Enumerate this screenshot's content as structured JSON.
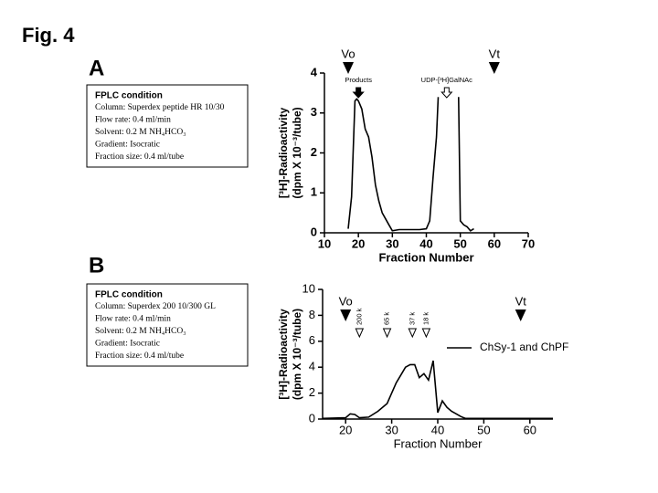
{
  "figure_label": "Fig. 4",
  "chart_data": [
    {
      "type": "line",
      "panel": "A",
      "condition": {
        "title": "FPLC condition",
        "lines": [
          "Column: Superdex peptide HR 10/30",
          "Flow rate: 0.4 ml/min",
          "Solvent: 0.2 M NH₄HCO₃",
          "Gradient:  Isocratic",
          "Fraction size: 0.4 ml/tube"
        ]
      },
      "ylabel": [
        "[³H]-Radioactivity",
        "(dpm X 10⁻³/tube)"
      ],
      "xlabel": "Fraction Number",
      "xlim": [
        10,
        70
      ],
      "xticks": [
        10,
        20,
        30,
        40,
        50,
        60,
        70
      ],
      "ylim": [
        0,
        4
      ],
      "yticks": [
        0,
        1,
        2,
        3,
        4
      ],
      "color": "#000000",
      "x": [
        17,
        18,
        19,
        19.5,
        20,
        21,
        22,
        23,
        24,
        25,
        26,
        27,
        28,
        29,
        30,
        32,
        35,
        38,
        40,
        41,
        42,
        43,
        43.5,
        44,
        49.5,
        50,
        51,
        52,
        53,
        54
      ],
      "values": [
        0.1,
        0.9,
        3.3,
        3.35,
        3.3,
        3.1,
        2.6,
        2.4,
        1.9,
        1.2,
        0.8,
        0.5,
        0.35,
        0.2,
        0.05,
        0.08,
        0.08,
        0.08,
        0.1,
        0.3,
        1.4,
        2.4,
        3.4,
        null,
        3.4,
        0.3,
        0.2,
        0.15,
        0.05,
        0.1
      ],
      "annotations": [
        {
          "text": "Vo",
          "x": 17,
          "marker": "triangle"
        },
        {
          "text": "Vt",
          "x": 60,
          "marker": "triangle"
        },
        {
          "text": "Products",
          "x": 20,
          "marker": "arrow"
        },
        {
          "text": "UDP-[³H]GalNAc",
          "x": 46,
          "marker": "open-arrow"
        }
      ]
    },
    {
      "type": "line",
      "panel": "B",
      "condition": {
        "title": "FPLC condition",
        "lines": [
          "Column: Superdex 200 10/300 GL",
          "Flow rate: 0.4 ml/min",
          "Solvent: 0.2 M NH₄HCO₃",
          "Gradient:  Isocratic",
          "Fraction size: 0.4 ml/tube"
        ]
      },
      "ylabel": [
        "[³H]-Radioactivity",
        "(dpm X 10⁻³/tube)"
      ],
      "xlabel": "Fraction Number",
      "xlim": [
        15,
        65
      ],
      "xticks": [
        20,
        30,
        40,
        50,
        60
      ],
      "ylim": [
        0,
        10
      ],
      "yticks": [
        0,
        2,
        4,
        6,
        8,
        10
      ],
      "x": [
        15,
        20,
        21,
        22,
        23,
        25,
        27,
        29,
        30,
        31,
        32,
        33,
        34,
        35,
        36,
        37,
        38,
        39,
        40,
        41,
        42,
        43,
        44,
        45,
        46,
        50,
        65
      ],
      "series": [
        {
          "name": "ChSy-1 and ChPF",
          "color": "#000000",
          "values": [
            0.05,
            0.1,
            0.4,
            0.35,
            0.1,
            0.15,
            0.6,
            1.2,
            2.0,
            2.8,
            3.4,
            4.0,
            4.2,
            4.2,
            3.2,
            3.5,
            3.0,
            4.5,
            0.5,
            1.4,
            0.9,
            0.6,
            0.4,
            0.2,
            0.05,
            0.05,
            0.05
          ]
        }
      ],
      "annotations": [
        {
          "text": "Vo",
          "x": 20,
          "marker": "triangle"
        },
        {
          "text": "Vt",
          "x": 58,
          "marker": "triangle"
        },
        {
          "text": "200 k",
          "x": 23,
          "marker": "open-triangle"
        },
        {
          "text": "65 k",
          "x": 29,
          "marker": "open-triangle"
        },
        {
          "text": "37 k",
          "x": 34.5,
          "marker": "open-triangle"
        },
        {
          "text": "18 k",
          "x": 37.5,
          "marker": "open-triangle"
        }
      ]
    }
  ]
}
